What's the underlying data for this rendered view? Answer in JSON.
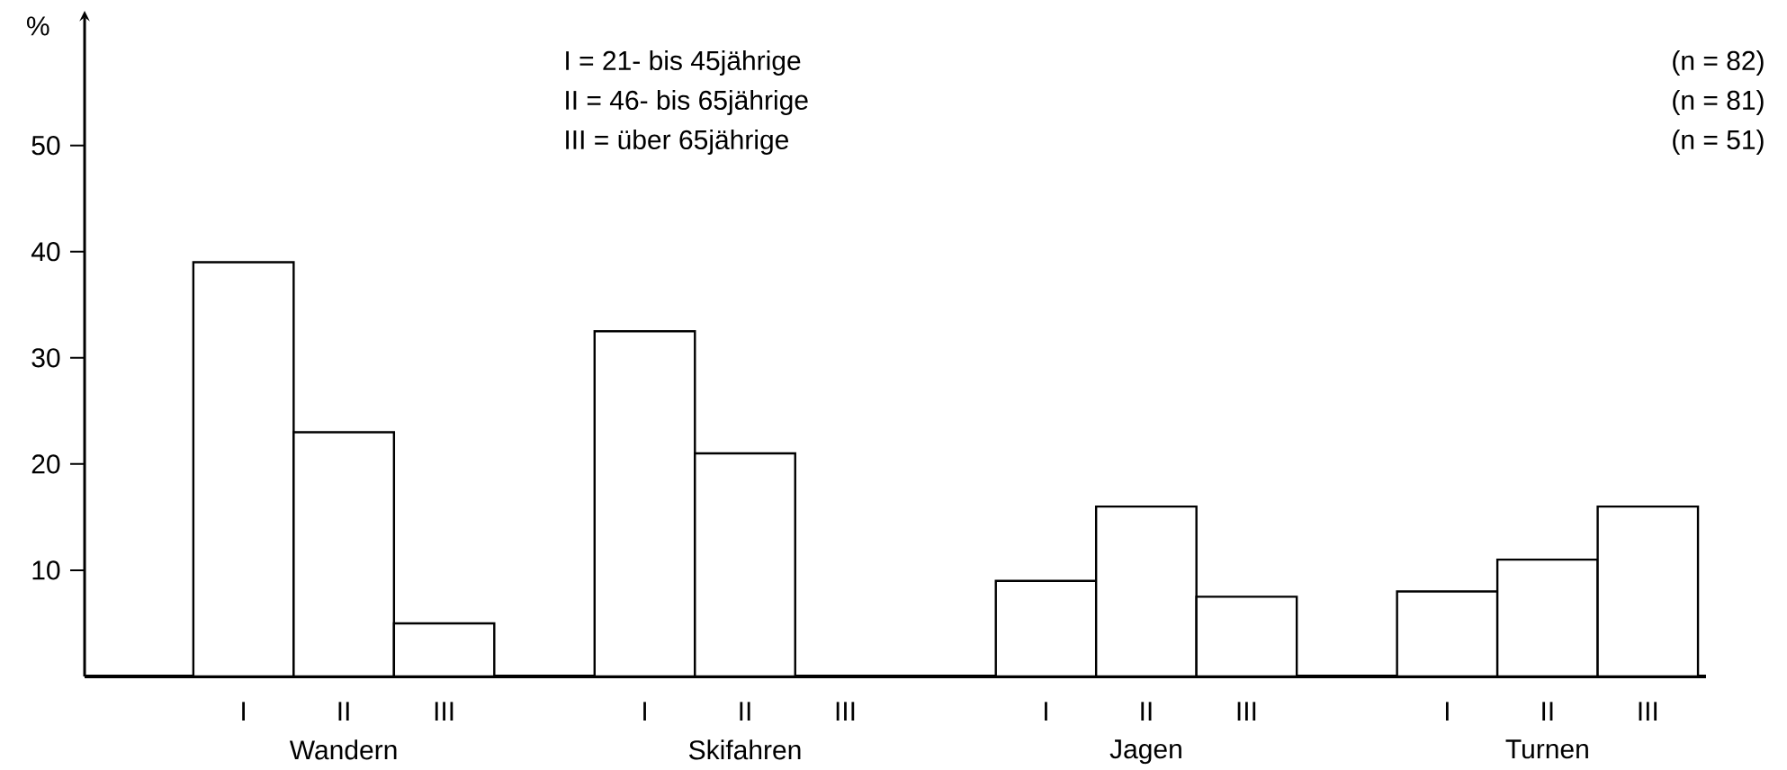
{
  "chart_data": {
    "type": "bar",
    "ylabel": "%",
    "categories": [
      "Wandern",
      "Skifahren",
      "Jagen",
      "Turnen"
    ],
    "series": [
      {
        "name": "I",
        "color": "#ffffff",
        "values": [
          39,
          32.5,
          9,
          8
        ]
      },
      {
        "name": "II",
        "color": "#ffffff",
        "values": [
          23,
          21,
          16,
          11
        ]
      },
      {
        "name": "III",
        "color": "#ffffff",
        "values": [
          5,
          null,
          7.5,
          16
        ]
      }
    ],
    "ylim": [
      0,
      62
    ],
    "yticks": [
      10,
      20,
      30,
      40,
      50
    ],
    "grid": false,
    "annotations": [
      "I = 21- bis 45jährige",
      "II = 46- bis 65jährige",
      "III = über 65jährige",
      "(n = 82)",
      "(n = 81)",
      "(n = 51)"
    ]
  }
}
